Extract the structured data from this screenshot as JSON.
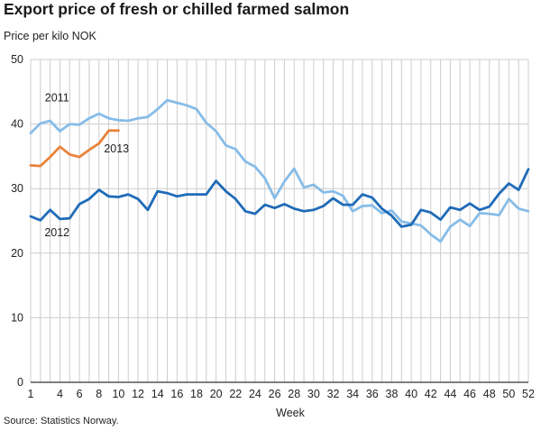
{
  "title": "Export price of fresh or chilled farmed salmon",
  "subtitle": "Price per kilo NOK",
  "source": "Source: Statistics Norway.",
  "colors": {
    "2011": "#86bce8",
    "2012": "#1f6bb8",
    "2013": "#e8833a",
    "grid": "#cccccc",
    "axis": "#333333"
  },
  "chart_data": {
    "type": "line",
    "title": "Export price of fresh or chilled farmed salmon",
    "ylabel": "Price per kilo NOK",
    "xlabel": "Week",
    "xlim": [
      1,
      52
    ],
    "ylim": [
      0,
      50
    ],
    "grid": true,
    "x_ticks": [
      1,
      4,
      6,
      8,
      10,
      12,
      14,
      16,
      18,
      20,
      22,
      24,
      26,
      28,
      30,
      32,
      34,
      36,
      38,
      40,
      42,
      44,
      46,
      48,
      50,
      52
    ],
    "y_ticks": [
      0,
      10,
      20,
      30,
      40,
      50
    ],
    "series": [
      {
        "name": "2011",
        "x": [
          1,
          2,
          3,
          4,
          5,
          6,
          7,
          8,
          9,
          10,
          11,
          12,
          13,
          14,
          15,
          16,
          17,
          18,
          19,
          20,
          21,
          22,
          23,
          24,
          25,
          26,
          27,
          28,
          29,
          30,
          31,
          32,
          33,
          34,
          35,
          36,
          37,
          38,
          39,
          40,
          41,
          42,
          43,
          44,
          45,
          46,
          47,
          48,
          49,
          50,
          51,
          52
        ],
        "values": [
          38.6,
          40.1,
          40.5,
          38.9,
          40.0,
          39.9,
          40.9,
          41.6,
          40.9,
          40.6,
          40.5,
          40.9,
          41.1,
          42.3,
          43.7,
          43.3,
          42.9,
          42.3,
          40.2,
          38.9,
          36.7,
          36.1,
          34.2,
          33.4,
          31.6,
          28.5,
          31.1,
          33.1,
          30.2,
          30.6,
          29.4,
          29.6,
          28.9,
          26.5,
          27.3,
          27.4,
          26.2,
          26.6,
          24.9,
          24.6,
          24.3,
          22.9,
          21.8,
          24.1,
          25.2,
          24.2,
          26.2,
          26.1,
          25.9,
          28.4,
          26.9,
          26.5
        ]
      },
      {
        "name": "2012",
        "x": [
          1,
          2,
          3,
          4,
          5,
          6,
          7,
          8,
          9,
          10,
          11,
          12,
          13,
          14,
          15,
          16,
          17,
          18,
          19,
          20,
          21,
          22,
          23,
          24,
          25,
          26,
          27,
          28,
          29,
          30,
          31,
          32,
          33,
          34,
          35,
          36,
          37,
          38,
          39,
          40,
          41,
          42,
          43,
          44,
          45,
          46,
          47,
          48,
          49,
          50,
          51,
          52
        ],
        "values": [
          25.7,
          25.1,
          26.7,
          25.3,
          25.4,
          27.6,
          28.4,
          29.8,
          28.8,
          28.7,
          29.1,
          28.4,
          26.7,
          29.6,
          29.3,
          28.8,
          29.1,
          29.1,
          29.1,
          31.2,
          29.6,
          28.4,
          26.5,
          26.1,
          27.5,
          27.0,
          27.6,
          26.9,
          26.5,
          26.7,
          27.3,
          28.5,
          27.5,
          27.5,
          29.1,
          28.6,
          26.9,
          25.8,
          24.1,
          24.4,
          26.7,
          26.3,
          25.2,
          27.1,
          26.7,
          27.7,
          26.7,
          27.2,
          29.2,
          30.8,
          29.8,
          33.0
        ]
      },
      {
        "name": "2013",
        "x": [
          1,
          2,
          3,
          4,
          5,
          6,
          7,
          8,
          9,
          10
        ],
        "values": [
          33.6,
          33.5,
          34.9,
          36.5,
          35.3,
          34.9,
          36.0,
          37.0,
          39.0,
          39.0
        ]
      }
    ],
    "annotations": [
      {
        "text": "2011",
        "x": 3.7,
        "y": 43.5
      },
      {
        "text": "2013",
        "x": 9.8,
        "y": 35.6
      },
      {
        "text": "2012",
        "x": 3.7,
        "y": 22.6
      }
    ]
  }
}
